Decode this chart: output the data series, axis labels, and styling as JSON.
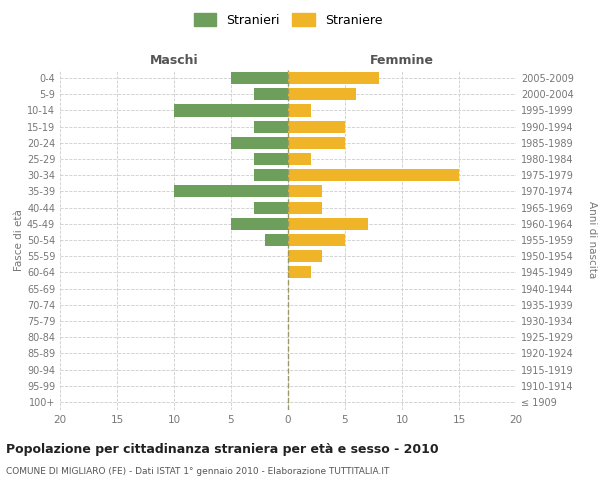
{
  "age_groups": [
    "100+",
    "95-99",
    "90-94",
    "85-89",
    "80-84",
    "75-79",
    "70-74",
    "65-69",
    "60-64",
    "55-59",
    "50-54",
    "45-49",
    "40-44",
    "35-39",
    "30-34",
    "25-29",
    "20-24",
    "15-19",
    "10-14",
    "5-9",
    "0-4"
  ],
  "birth_years": [
    "≤ 1909",
    "1910-1914",
    "1915-1919",
    "1920-1924",
    "1925-1929",
    "1930-1934",
    "1935-1939",
    "1940-1944",
    "1945-1949",
    "1950-1954",
    "1955-1959",
    "1960-1964",
    "1965-1969",
    "1970-1974",
    "1975-1979",
    "1980-1984",
    "1985-1989",
    "1990-1994",
    "1995-1999",
    "2000-2004",
    "2005-2009"
  ],
  "males": [
    0,
    0,
    0,
    0,
    0,
    0,
    0,
    0,
    0,
    0,
    2,
    5,
    3,
    10,
    3,
    3,
    5,
    3,
    10,
    3,
    5
  ],
  "females": [
    0,
    0,
    0,
    0,
    0,
    0,
    0,
    0,
    2,
    3,
    5,
    7,
    3,
    3,
    15,
    2,
    5,
    5,
    2,
    6,
    8
  ],
  "male_color": "#6d9e5b",
  "female_color": "#f0b429",
  "title": "Popolazione per cittadinanza straniera per età e sesso - 2010",
  "subtitle": "COMUNE DI MIGLIARO (FE) - Dati ISTAT 1° gennaio 2010 - Elaborazione TUTTITALIA.IT",
  "xlabel_left": "Maschi",
  "xlabel_right": "Femmine",
  "ylabel_left": "Fasce di età",
  "ylabel_right": "Anni di nascita",
  "legend_male": "Stranieri",
  "legend_female": "Straniere",
  "xlim": 20,
  "background_color": "#ffffff",
  "grid_color": "#cccccc"
}
